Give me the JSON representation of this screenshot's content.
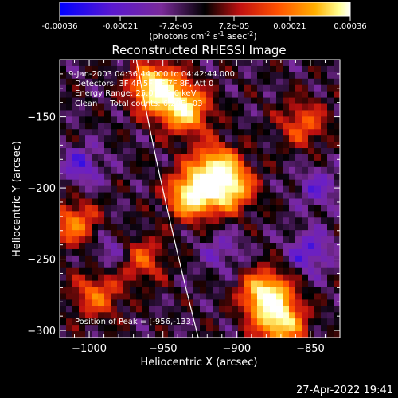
{
  "colorbar": {
    "tick_labels": [
      "-0.00036",
      "-0.00021",
      "-7.2e-05",
      "7.2e-05",
      "0.00021",
      "0.00036"
    ],
    "tick_values": [
      -0.00036,
      -0.00021,
      -7.2e-05,
      7.2e-05,
      0.00021,
      0.00036
    ],
    "range": [
      -0.00036,
      0.00036
    ],
    "unit_label": "(photons cm-2 s-1 asec-2)"
  },
  "chart_data": {
    "type": "heatmap",
    "title": "Reconstructed RHESSI Image",
    "xlabel": "Heliocentric X (arcsec)",
    "ylabel": "Heliocentric Y (arcsec)",
    "xlim": [
      -1020,
      -830
    ],
    "ylim": [
      -305,
      -110
    ],
    "x_ticks": [
      -1000,
      -950,
      -900,
      -850
    ],
    "x_tick_labels": [
      "−1000",
      "−950",
      "−900",
      "−850"
    ],
    "y_ticks": [
      -150,
      -200,
      -250,
      -300
    ],
    "y_tick_labels": [
      "−150",
      "−200",
      "−250",
      "−300"
    ],
    "colormap": [
      "#0000ff",
      "#6a1ec8",
      "#7a2a9a",
      "#000000",
      "#c01010",
      "#ff5000",
      "#ffa000",
      "#ffff90",
      "#ffffff"
    ],
    "bright_sources": [
      {
        "x": -955,
        "y": -130,
        "strength": 1.0
      },
      {
        "x": -935,
        "y": -145,
        "strength": 0.85
      },
      {
        "x": -930,
        "y": -205,
        "strength": 0.95
      },
      {
        "x": -905,
        "y": -200,
        "strength": 0.8
      },
      {
        "x": -915,
        "y": -185,
        "strength": 0.7
      },
      {
        "x": -880,
        "y": -275,
        "strength": 0.95
      },
      {
        "x": -870,
        "y": -295,
        "strength": 0.8
      },
      {
        "x": -1010,
        "y": -225,
        "strength": 0.55
      },
      {
        "x": -995,
        "y": -275,
        "strength": 0.5
      },
      {
        "x": -965,
        "y": -250,
        "strength": 0.45
      },
      {
        "x": -855,
        "y": -155,
        "strength": 0.45
      }
    ],
    "dim_regions": [
      {
        "x": -1005,
        "y": -185,
        "strength": 0.7
      },
      {
        "x": -985,
        "y": -245,
        "strength": 0.6
      },
      {
        "x": -850,
        "y": -245,
        "strength": 0.8
      },
      {
        "x": -910,
        "y": -245,
        "strength": 0.5
      },
      {
        "x": -845,
        "y": -200,
        "strength": 0.6
      }
    ],
    "limb_line": [
      [
        -968,
        -110
      ],
      [
        -952,
        -200
      ],
      [
        -926,
        -305
      ]
    ]
  },
  "annotations": {
    "time_range": "9-Jan-2003 04:36:44.000 to 04:42:44.000",
    "detectors": "Detectors: 3F 4F 5F 6F 7F 8F, Att 0",
    "energy": "Energy Range: 25.0 - 50.0 keV",
    "clean": "Clean     Total counts: 6.20E+03",
    "peak": "Position of Peak = [-956,-133]"
  },
  "footer_timestamp": "27-Apr-2022 19:41"
}
